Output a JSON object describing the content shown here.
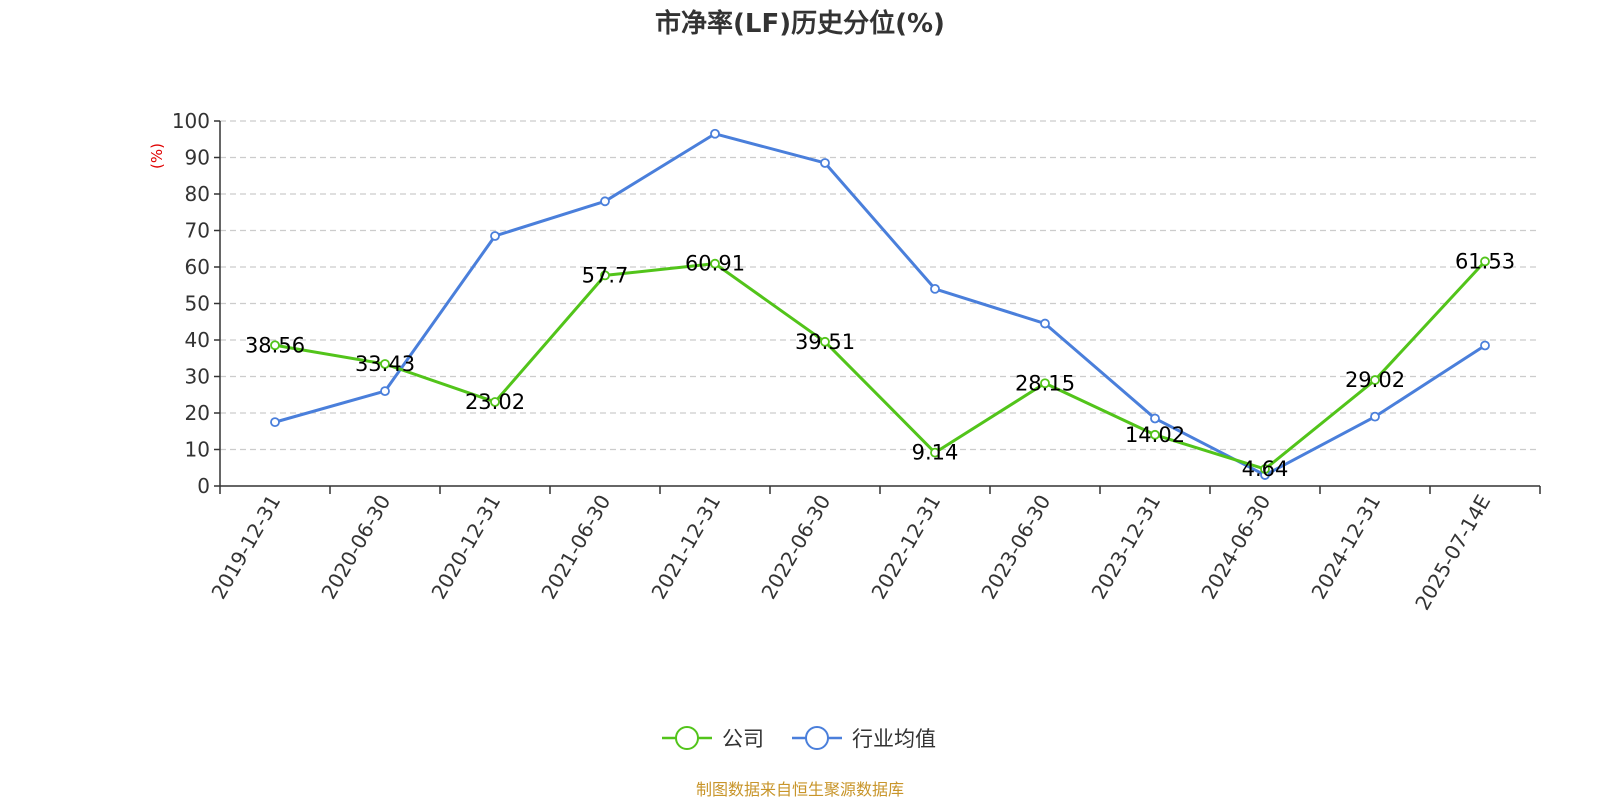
{
  "chart_data": {
    "type": "line",
    "title": "市净率(LF)历史分位(%)",
    "y_unit": "(%)",
    "categories": [
      "2019-12-31",
      "2020-06-30",
      "2020-12-31",
      "2021-06-30",
      "2021-12-31",
      "2022-06-30",
      "2022-12-31",
      "2023-06-30",
      "2023-12-31",
      "2024-06-30",
      "2024-12-31",
      "2025-07-14E"
    ],
    "ylim": [
      0,
      100
    ],
    "yticks": [
      "0",
      "10",
      "20",
      "30",
      "40",
      "50",
      "60",
      "70",
      "80",
      "90",
      "100"
    ],
    "grid": "horizontal dashed",
    "legend_position": "bottom",
    "series": [
      {
        "name": "公司",
        "color": "#52c41a",
        "show_labels": true,
        "values": [
          38.56,
          33.43,
          23.02,
          57.7,
          60.91,
          39.51,
          9.14,
          28.15,
          14.02,
          4.64,
          29.02,
          61.53
        ]
      },
      {
        "name": "行业均值",
        "color": "#4a7fdb",
        "show_labels": false,
        "values": [
          17.5,
          26.0,
          68.5,
          78.0,
          96.5,
          88.5,
          54.0,
          44.5,
          18.5,
          3.0,
          19.0,
          38.5
        ]
      }
    ]
  },
  "source": "制图数据来自恒生聚源数据库",
  "colors": {
    "axis": "#333333",
    "grid": "#cccccc",
    "unit": "#e00000",
    "source": "#c8952a"
  }
}
